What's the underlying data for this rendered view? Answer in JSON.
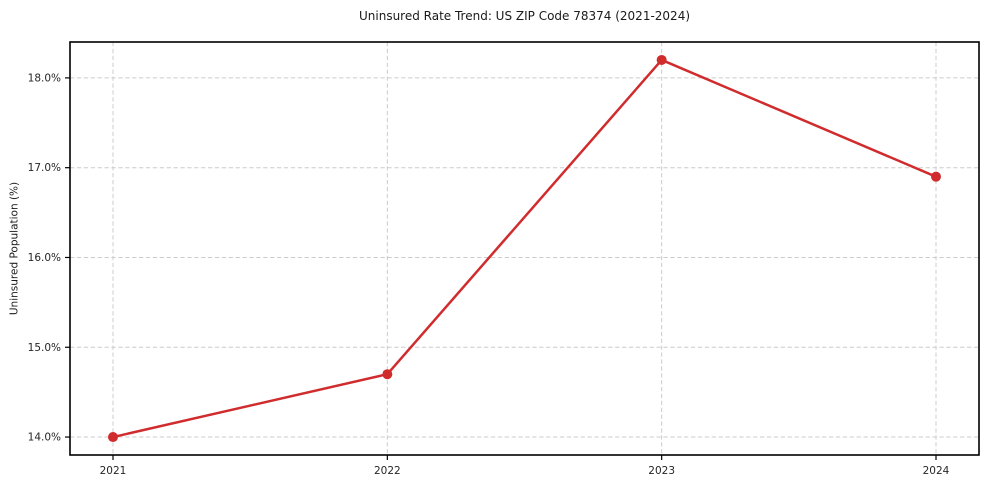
{
  "chart_data": {
    "type": "line",
    "title": "Uninsured Rate Trend: US ZIP Code 78374 (2021-2024)",
    "ylabel": "Uninsured Population (%)",
    "categories": [
      "2021",
      "2022",
      "2023",
      "2024"
    ],
    "values": [
      14.0,
      14.7,
      18.2,
      16.9
    ],
    "y_ticks": [
      14.0,
      15.0,
      16.0,
      17.0,
      18.0
    ],
    "y_tick_labels": [
      "14.0%",
      "15.0%",
      "16.0%",
      "17.0%",
      "18.0%"
    ],
    "ylim": [
      13.8,
      18.4
    ],
    "grid": true,
    "legend": "none",
    "colors": {
      "line": "#d02c2e",
      "marker": "#d02c2e",
      "grid": "#cccccc",
      "spine": "#000000",
      "background": "#ffffff",
      "text": "#1a1a1a"
    }
  }
}
